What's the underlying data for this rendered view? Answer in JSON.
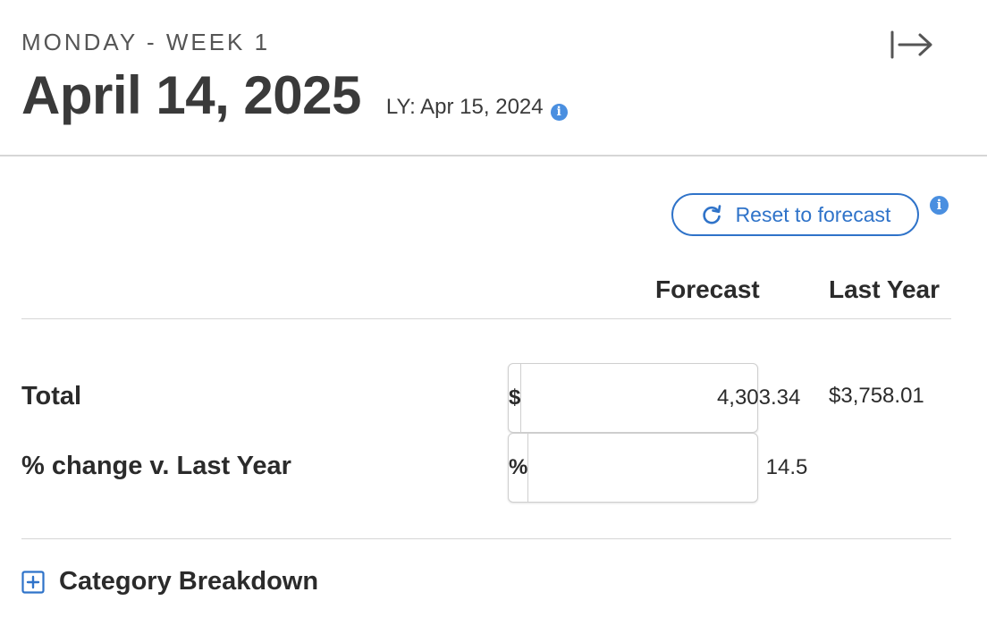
{
  "header": {
    "day_label": "MONDAY - WEEK 1",
    "date_title": "April 14, 2025",
    "last_year_date": "LY: Apr 15, 2024",
    "info_icon": "info-icon",
    "collapse_icon": "arrow-right-to-bar-icon"
  },
  "controls": {
    "reset_label": "Reset to forecast",
    "reset_icon": "refresh-icon",
    "accent_color": "#2f73c9",
    "info_color": "#4a8fe0"
  },
  "table": {
    "columns": {
      "forecast": "Forecast",
      "last_year": "Last Year"
    },
    "rows": {
      "total": {
        "label": "Total",
        "prefix": "$",
        "forecast_value": "4,303.34",
        "last_year_value": "$3,758.01"
      },
      "change": {
        "label": "% change v. Last Year",
        "prefix": "%",
        "forecast_value": "14.5"
      }
    }
  },
  "breakdown": {
    "label": "Category Breakdown",
    "icon": "plus-square-icon"
  }
}
